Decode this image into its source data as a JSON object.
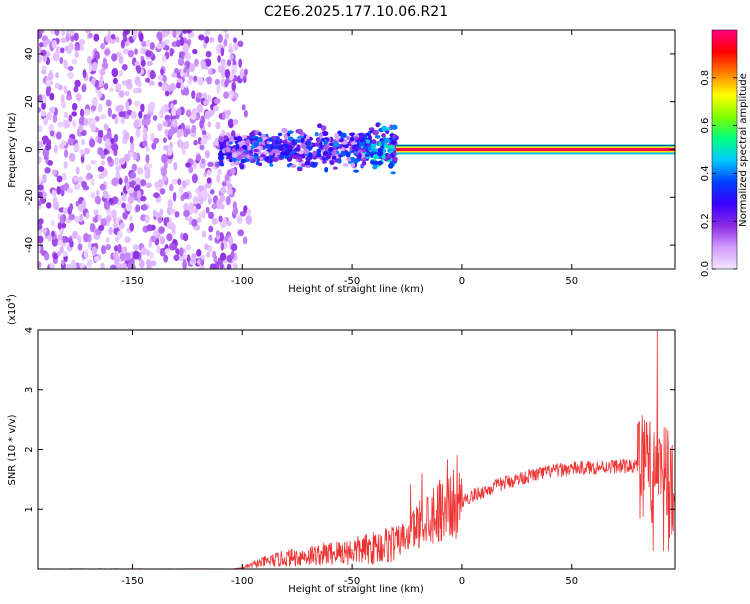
{
  "title": "C2E6.2025.177.10.06.R21",
  "chart_data": [
    {
      "type": "heatmap",
      "xlabel": "Height of straight line (km)",
      "ylabel": "Frequency (Hz)",
      "xlim": [
        -193,
        97
      ],
      "ylim": [
        -50,
        50
      ],
      "xticks": [
        -150,
        -100,
        -50,
        0,
        50
      ],
      "yticks": [
        -40,
        -20,
        0,
        20,
        40
      ],
      "colorbar": {
        "label": "Normalized spectral amplitude",
        "range": [
          0.0,
          1.0
        ],
        "ticks": [
          0.0,
          0.2,
          0.4,
          0.6,
          0.8
        ],
        "tick_labels": [
          "0.0",
          "0.2",
          "0.4",
          "0.6",
          "0.8"
        ],
        "colors": [
          "#f4e6ff",
          "#d39bff",
          "#8a2be2",
          "#3a00ff",
          "#0040ff",
          "#00c8ff",
          "#00ff80",
          "#80ff00",
          "#ffff00",
          "#ff8000",
          "#ff0000",
          "#ff0080"
        ]
      },
      "regions": [
        {
          "x": [
            -193,
            -103
          ],
          "y": [
            -50,
            50
          ],
          "amplitude": [
            0.02,
            0.15
          ],
          "note": "scattered noise"
        },
        {
          "x": [
            -110,
            -30
          ],
          "y": [
            -12,
            12
          ],
          "amplitude": [
            0.1,
            0.45
          ],
          "note": "broad echo"
        },
        {
          "x": [
            -30,
            97
          ],
          "y": [
            -1,
            1
          ],
          "amplitude": [
            0.8,
            1.0
          ],
          "note": "narrow signal at 0 Hz"
        }
      ]
    },
    {
      "type": "line",
      "xlabel": "Height of straight line (km)",
      "ylabel": "SNR (10 * v/v)",
      "y_multiplier": "(x10",
      "y_multiplier_exp": "4",
      "y_multiplier_close": ")",
      "xlim": [
        -193,
        97
      ],
      "ylim": [
        0,
        4
      ],
      "xticks": [
        -150,
        -100,
        -50,
        0,
        50
      ],
      "yticks": [
        1,
        2,
        3,
        4
      ],
      "color": "#ee3333",
      "envelope": {
        "x": [
          -193,
          -105,
          -100,
          -90,
          -80,
          -70,
          -60,
          -50,
          -40,
          -30,
          -25,
          -20,
          -15,
          -10,
          -5,
          0,
          10,
          20,
          30,
          40,
          50,
          60,
          70,
          80,
          85,
          88,
          90,
          92,
          94,
          97
        ],
        "y": [
          0.0,
          0.0,
          0.02,
          0.12,
          0.18,
          0.22,
          0.26,
          0.3,
          0.35,
          0.45,
          0.55,
          0.75,
          0.9,
          1.0,
          1.05,
          1.15,
          1.3,
          1.45,
          1.55,
          1.63,
          1.68,
          1.7,
          1.72,
          1.72,
          1.7,
          1.5,
          1.3,
          1.6,
          1.4,
          1.5
        ]
      }
    }
  ],
  "ui": {
    "colorbar_tick_labels": [
      "0.0",
      "0.2",
      "0.4",
      "0.6",
      "0.8"
    ]
  }
}
